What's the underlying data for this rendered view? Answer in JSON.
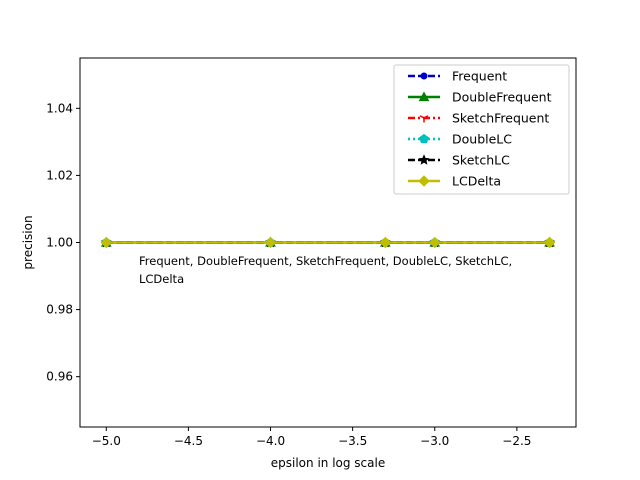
{
  "chart_data": {
    "type": "line",
    "xlabel": "epsilon in log scale",
    "ylabel": "precision",
    "xlim": [
      -5.16,
      -2.14
    ],
    "ylim": [
      0.945,
      1.055
    ],
    "xticks": [
      -5.0,
      -4.5,
      -4.0,
      -3.5,
      -3.0,
      -2.5
    ],
    "xtick_labels": [
      "−5.0",
      "−4.5",
      "−4.0",
      "−3.5",
      "−3.0",
      "−2.5"
    ],
    "yticks": [
      0.96,
      0.98,
      1.0,
      1.02,
      1.04
    ],
    "ytick_labels": [
      "0.96",
      "0.98",
      "1.00",
      "1.02",
      "1.04"
    ],
    "grid": false,
    "legend_position": "top-right",
    "x": [
      -5.0,
      -4.0,
      -3.301,
      -3.0,
      -2.301
    ],
    "series": [
      {
        "name": "Frequent",
        "values": [
          1.0,
          1.0,
          1.0,
          1.0,
          1.0
        ],
        "color": "#0000cc",
        "linestyle": "dashed",
        "marker": "circle"
      },
      {
        "name": "DoubleFrequent",
        "values": [
          1.0,
          1.0,
          1.0,
          1.0,
          1.0
        ],
        "color": "#008000",
        "linestyle": "solid",
        "marker": "triangle"
      },
      {
        "name": "SketchFrequent",
        "values": [
          1.0,
          1.0,
          1.0,
          1.0,
          1.0
        ],
        "color": "#ff0000",
        "linestyle": "dashdot",
        "marker": "tri"
      },
      {
        "name": "DoubleLC",
        "values": [
          1.0,
          1.0,
          1.0,
          1.0,
          1.0
        ],
        "color": "#00bfbf",
        "linestyle": "dotted",
        "marker": "pentagon"
      },
      {
        "name": "SketchLC",
        "values": [
          1.0,
          1.0,
          1.0,
          1.0,
          1.0
        ],
        "color": "#000000",
        "linestyle": "dashed",
        "marker": "star"
      },
      {
        "name": "LCDelta",
        "values": [
          1.0,
          1.0,
          1.0,
          1.0,
          1.0
        ],
        "color": "#bfbf00",
        "linestyle": "solid",
        "marker": "diamond"
      }
    ],
    "annotations": [
      "Frequent, DoubleFrequent, SketchFrequent, DoubleLC, SketchLC,",
      "LCDelta"
    ]
  }
}
